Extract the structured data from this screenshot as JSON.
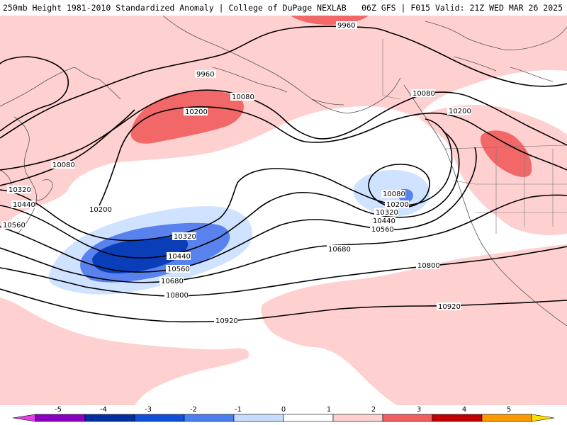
{
  "header": {
    "title": "250mb Height 1981-2010 Standardized Anomaly | College of DuPage NEXLAB",
    "run_info": "06Z GFS | F015 Valid: 21Z WED MAR 26 2025"
  },
  "contours": {
    "labels": [
      "9960",
      "9960",
      "10080",
      "10080",
      "10080",
      "10200",
      "10200",
      "10200",
      "10200",
      "10320",
      "10320",
      "10440",
      "10440",
      "10560",
      "10560",
      "10680",
      "10800",
      "10800",
      "10920",
      "10920",
      "10320",
      "10440",
      "10560",
      "10680",
      "10080"
    ]
  },
  "colorbar": {
    "ticks": [
      "-5",
      "-4",
      "-3",
      "-2",
      "-1",
      "0",
      "1",
      "2",
      "3",
      "4",
      "5"
    ],
    "colors": [
      "#e040e0",
      "#8a00c0",
      "#0030a0",
      "#1050d8",
      "#4c7ff0",
      "#c8dcff",
      "#ffffff",
      "#ffd0d0",
      "#f06060",
      "#c00000",
      "#ff9900",
      "#ffe000"
    ]
  },
  "anomaly_colors": {
    "light_pos": "#ffd0d0",
    "med_pos": "#f26868",
    "light_neg": "#cfe2ff",
    "med_neg": "#5a82ee",
    "dark_neg": "#0a3db8"
  }
}
